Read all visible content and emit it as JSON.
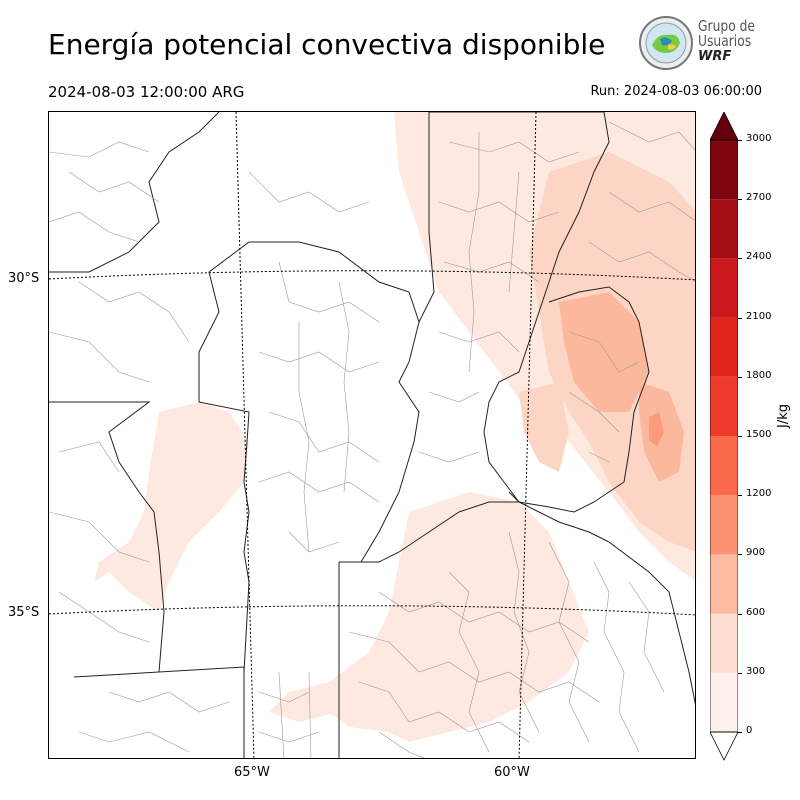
{
  "header": {
    "title": "Energía potencial convectiva disponible",
    "valid_time": "2024-08-03 12:00:00 ARG",
    "run_time": "Run: 2024-08-03 06:00:00"
  },
  "logo": {
    "line1": "Grupo de",
    "line2": "Usuarios",
    "line3": "WRF"
  },
  "map": {
    "lat_labels": [
      "30°S",
      "35°S"
    ],
    "lon_labels": [
      "65°W",
      "60°W"
    ],
    "field": "CAPE"
  },
  "colorbar": {
    "unit": "J/kg",
    "ticks": [
      "0",
      "300",
      "600",
      "900",
      "1200",
      "1500",
      "1800",
      "2100",
      "2400",
      "2700",
      "3000"
    ],
    "colors": [
      "#fff0eb",
      "#fee0d2",
      "#fcbba1",
      "#fc9272",
      "#fb6a4a",
      "#ef3b2c",
      "#e0261c",
      "#cb181d",
      "#a50f15",
      "#7f0510"
    ],
    "over_color": "#67000d"
  }
}
